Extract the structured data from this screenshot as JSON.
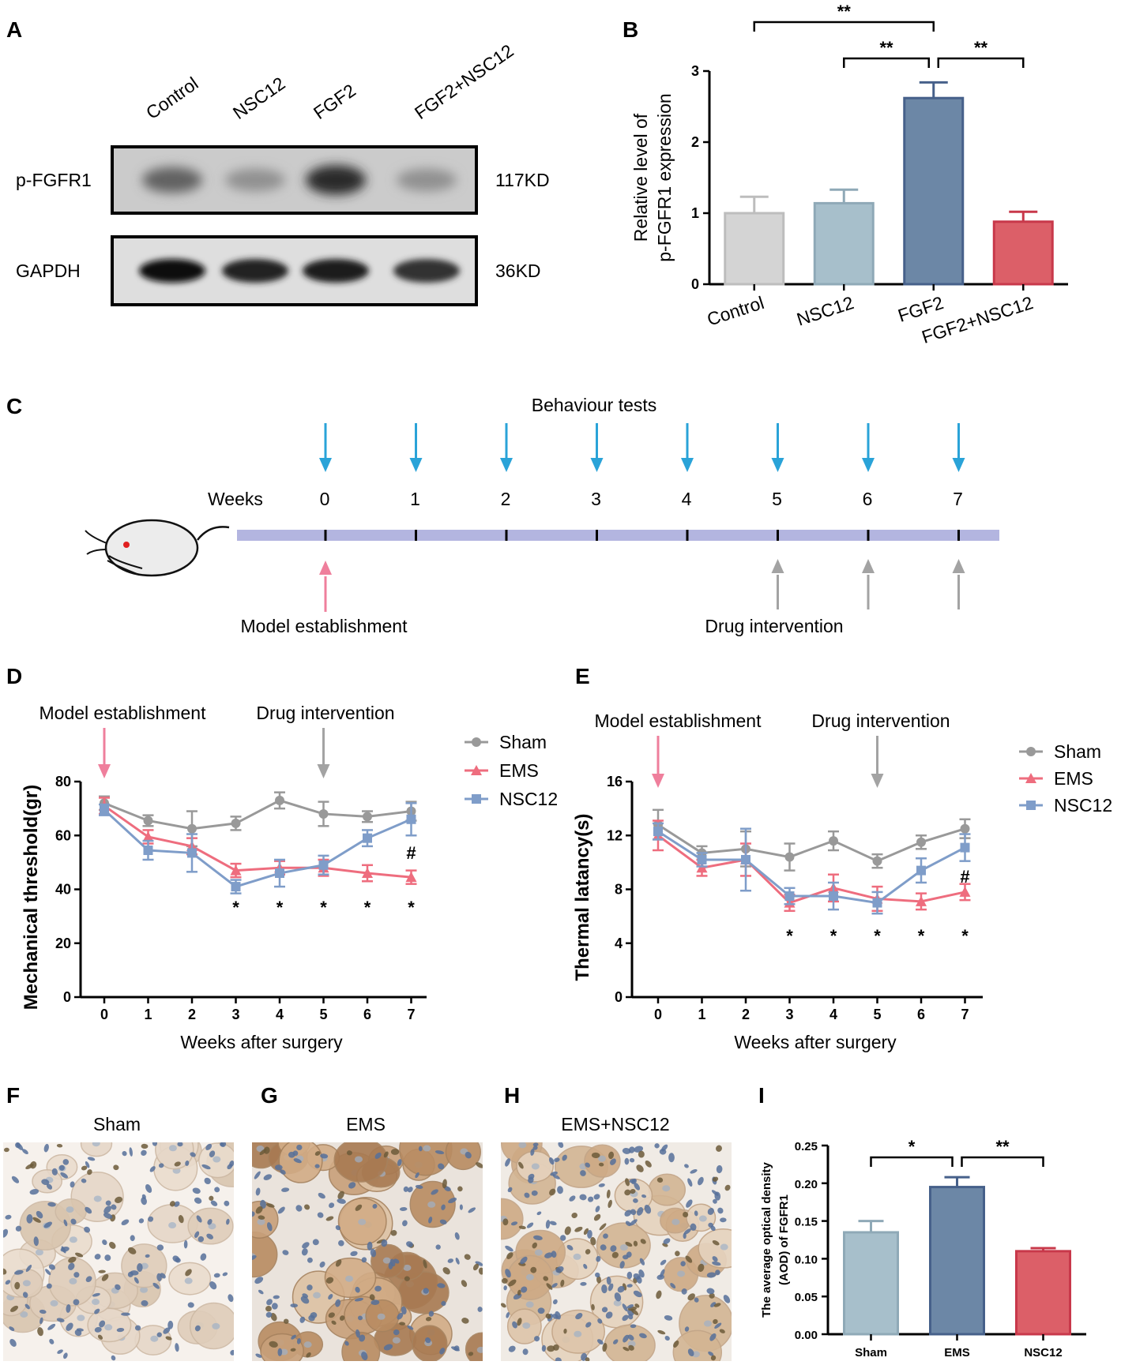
{
  "panels": {
    "A": "A",
    "B": "B",
    "C": "C",
    "D": "D",
    "E": "E",
    "F": "F",
    "G": "G",
    "H": "H",
    "I": "I"
  },
  "panel_a": {
    "lanes": [
      "Control",
      "NSC12",
      "FGF2",
      "FGF2+NSC12"
    ],
    "blots": [
      {
        "name": "p-FGFR1",
        "size": "117KD",
        "intensities": [
          0.55,
          0.3,
          0.85,
          0.3
        ]
      },
      {
        "name": "GAPDH",
        "size": "36KD",
        "intensities": [
          1.0,
          0.9,
          0.92,
          0.82
        ]
      }
    ]
  },
  "panel_c": {
    "title": "Behaviour tests",
    "weeks_label": "Weeks",
    "weeks": [
      "0",
      "1",
      "2",
      "3",
      "4",
      "5",
      "6",
      "7"
    ],
    "model_label": "Model establishment",
    "drug_label": "Drug intervention",
    "colors": {
      "test_arrow": "#2aa3d8",
      "timeline": "#b3b5e0",
      "model_arrow": "#ef7f9c",
      "drug_arrow": "#a3a3a3",
      "mouse_eye": "#e02020"
    }
  },
  "panel_d": {
    "model_label": "Model establishment",
    "drug_label": "Drug intervention"
  },
  "panel_e": {
    "model_label": "Model establishment",
    "drug_label": "Drug intervention"
  },
  "panel_f": {
    "title": "Sham"
  },
  "panel_g": {
    "title": "EMS"
  },
  "panel_h": {
    "title": "EMS+NSC12"
  },
  "chart_data": [
    {
      "id": "B",
      "type": "bar",
      "title": "",
      "xlabel": "",
      "ylabel": "Relative level of p-FGFR1 expression",
      "ylabel_lines": [
        "Relative level of",
        "p-FGFR1 expression"
      ],
      "ylim": [
        0,
        3
      ],
      "yticks": [
        "0",
        "1",
        "2",
        "3"
      ],
      "categories": [
        "Control",
        "NSC12",
        "FGF2",
        "FGF2+NSC12"
      ],
      "values": [
        1.0,
        1.14,
        2.62,
        0.88
      ],
      "errors": [
        0.23,
        0.19,
        0.22,
        0.14
      ],
      "colors": [
        "#d4d4d4",
        "#a7bfcb",
        "#6c87a6",
        "#dc5f68"
      ],
      "edge_colors": [
        "#bdbdbd",
        "#8fa9b7",
        "#46608a",
        "#c8384a"
      ],
      "significance": [
        {
          "label": "**",
          "from": 0,
          "to": 2
        },
        {
          "label": "**",
          "from": 1,
          "to": 2
        },
        {
          "label": "**",
          "from": 2,
          "to": 3
        }
      ]
    },
    {
      "id": "D",
      "type": "line",
      "xlabel": "Weeks after surgery",
      "ylabel": "Mechanical threshold(gr)",
      "x": [
        0,
        1,
        2,
        3,
        4,
        5,
        6,
        7
      ],
      "xticks": [
        "0",
        "1",
        "2",
        "3",
        "4",
        "5",
        "6",
        "7"
      ],
      "ylim": [
        0,
        80
      ],
      "yticks": [
        "0",
        "20",
        "40",
        "60",
        "80"
      ],
      "series": [
        {
          "name": "Sham",
          "marker": "circle",
          "color": "#999999",
          "values": [
            72,
            65.5,
            62.5,
            64.5,
            73,
            68,
            67,
            69
          ],
          "errors": [
            2.5,
            2,
            6.5,
            2.5,
            3,
            4.5,
            2,
            3.5
          ]
        },
        {
          "name": "EMS",
          "marker": "triangle",
          "color": "#ee6d7e",
          "values": [
            71,
            59.5,
            56,
            47,
            48,
            48,
            46,
            44.5
          ],
          "errors": [
            3,
            2.5,
            3,
            2.5,
            2.5,
            3,
            3,
            2.5
          ]
        },
        {
          "name": "NSC12",
          "marker": "square",
          "color": "#7f9dc9",
          "values": [
            69.5,
            54.5,
            53.5,
            41,
            46,
            49,
            59,
            66
          ],
          "errors": [
            2,
            3.5,
            7,
            2.5,
            5,
            3.5,
            3,
            6
          ]
        }
      ],
      "star_label": "*",
      "star_weeks": [
        3,
        4,
        5,
        6,
        7
      ],
      "hash_label": "#",
      "hash_week": 7
    },
    {
      "id": "E",
      "type": "line",
      "xlabel": "Weeks after surgery",
      "ylabel": "Thermal latancy(s)",
      "x": [
        0,
        1,
        2,
        3,
        4,
        5,
        6,
        7
      ],
      "xticks": [
        "0",
        "1",
        "2",
        "3",
        "4",
        "5",
        "6",
        "7"
      ],
      "ylim": [
        0,
        16
      ],
      "yticks": [
        "0",
        "4",
        "8",
        "12",
        "16"
      ],
      "series": [
        {
          "name": "Sham",
          "marker": "circle",
          "color": "#999999",
          "values": [
            12.8,
            10.7,
            11,
            10.4,
            11.6,
            10.1,
            11.5,
            12.5
          ],
          "errors": [
            1.1,
            0.5,
            1.3,
            1,
            0.7,
            0.5,
            0.5,
            0.7
          ]
        },
        {
          "name": "EMS",
          "marker": "triangle",
          "color": "#ee6d7e",
          "values": [
            12,
            9.6,
            10.2,
            7,
            8.1,
            7.3,
            7.1,
            7.8
          ],
          "errors": [
            1.1,
            0.6,
            1.2,
            0.6,
            1,
            0.9,
            0.6,
            0.6
          ]
        },
        {
          "name": "NSC12",
          "marker": "square",
          "color": "#7f9dc9",
          "values": [
            12.3,
            10.2,
            10.2,
            7.5,
            7.5,
            7,
            9.4,
            11.1
          ],
          "errors": [
            0.6,
            0.5,
            2.3,
            0.6,
            1,
            0.8,
            0.9,
            1
          ]
        }
      ],
      "star_label": "*",
      "star_weeks": [
        3,
        4,
        5,
        6,
        7
      ],
      "hash_label": "#",
      "hash_week": 7
    },
    {
      "id": "I",
      "type": "bar",
      "xlabel": "",
      "ylabel": "The average optical density (AOD) of FGFR1",
      "ylabel_lines": [
        "The average optical density",
        "(AOD) of FGFR1"
      ],
      "ylim": [
        0,
        0.25
      ],
      "yticks": [
        "0.00",
        "0.05",
        "0.10",
        "0.15",
        "0.20",
        "0.25"
      ],
      "categories": [
        "Sham",
        "EMS",
        "NSC12"
      ],
      "values": [
        0.135,
        0.195,
        0.11
      ],
      "errors": [
        0.015,
        0.013,
        0.004
      ],
      "colors": [
        "#a7bfcb",
        "#6c87a6",
        "#dc5f68"
      ],
      "edge_colors": [
        "#8fa9b7",
        "#46608a",
        "#c8384a"
      ],
      "significance": [
        {
          "label": "*",
          "from": 0,
          "to": 1
        },
        {
          "label": "**",
          "from": 1,
          "to": 2
        }
      ]
    }
  ]
}
